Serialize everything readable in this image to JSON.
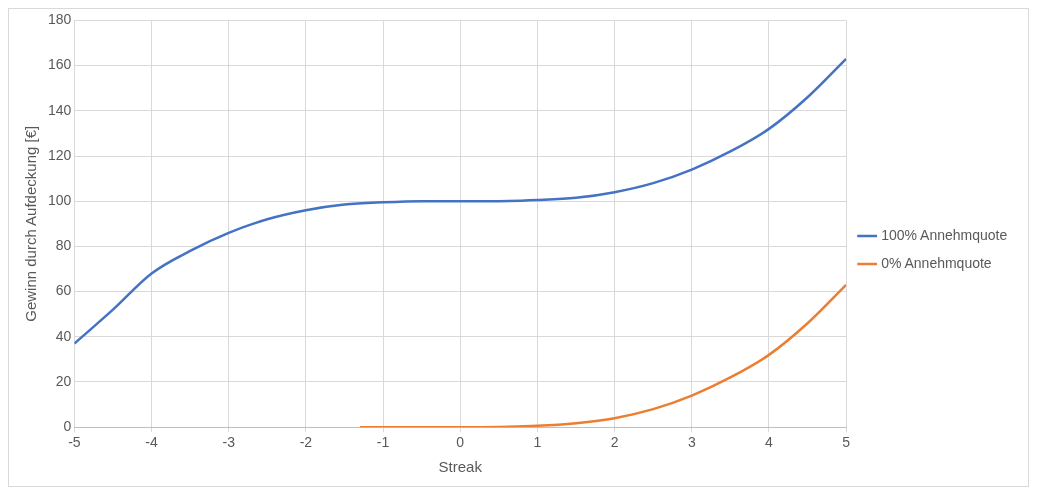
{
  "chart_data": {
    "type": "line",
    "xlabel": "Streak",
    "ylabel": "Gewinn durch Aufdeckung [€]",
    "xlim": [
      -5,
      5
    ],
    "xticks": [
      -5,
      -4,
      -3,
      -2,
      -1,
      0,
      1,
      2,
      3,
      4,
      5
    ],
    "ylim": [
      0,
      180
    ],
    "yticks": [
      0,
      20,
      40,
      60,
      80,
      100,
      120,
      140,
      160,
      180
    ],
    "grid": true,
    "legend": "right",
    "marker": "none",
    "line_style": "solid",
    "series": [
      {
        "name": "100% Annehmquote",
        "color": "#4472c4",
        "x": [
          -5,
          -4.5,
          -4,
          -3.5,
          -3,
          -2.5,
          -2,
          -1.5,
          -1,
          -0.5,
          0,
          0.5,
          1,
          1.5,
          2,
          2.5,
          3,
          3.5,
          4,
          4.5,
          5
        ],
        "values": [
          37,
          52,
          68,
          78,
          86,
          92,
          96,
          98.5,
          99.5,
          100,
          100,
          100,
          100.5,
          101.5,
          104,
          108,
          114,
          122,
          132,
          146,
          163
        ]
      },
      {
        "name": "0% Annehmquote",
        "color": "#ed7d31",
        "x": [
          -1.3,
          -1,
          -0.5,
          0,
          0.5,
          1,
          1.5,
          2,
          2.5,
          3,
          3.5,
          4,
          4.5,
          5
        ],
        "values": [
          0,
          0,
          0,
          0,
          0.1,
          0.6,
          1.8,
          4,
          8,
          14,
          22,
          32,
          46,
          63
        ]
      }
    ]
  }
}
